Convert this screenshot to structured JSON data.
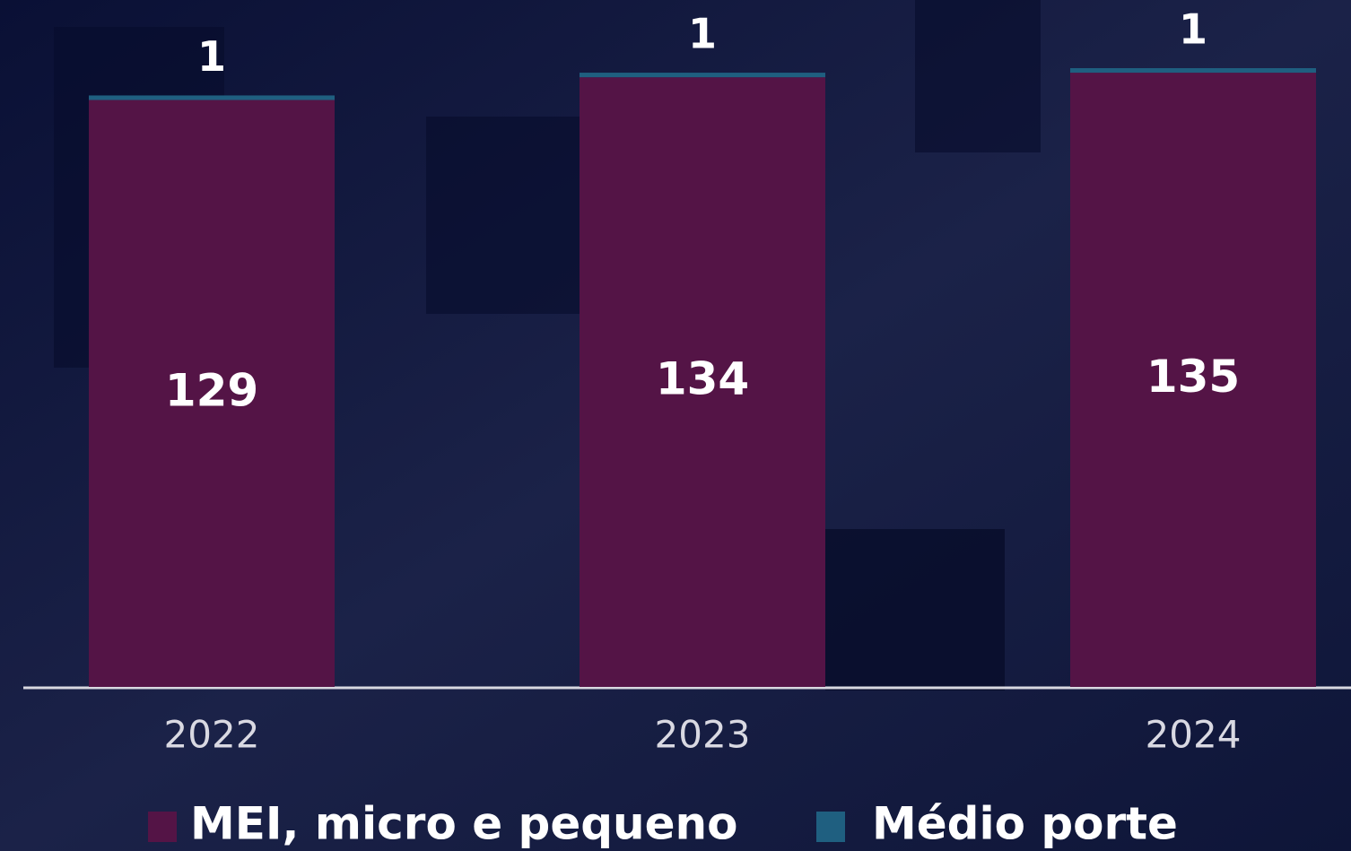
{
  "chart_data": {
    "type": "stacked-bar",
    "categories": [
      "2022",
      "2023",
      "2024"
    ],
    "series": [
      {
        "name": "MEI, micro e pequeno",
        "color": "#541446",
        "values": [
          129,
          134,
          135
        ]
      },
      {
        "name": "Médio porte",
        "color": "#1f5f80",
        "values": [
          1,
          1,
          1
        ]
      }
    ]
  }
}
